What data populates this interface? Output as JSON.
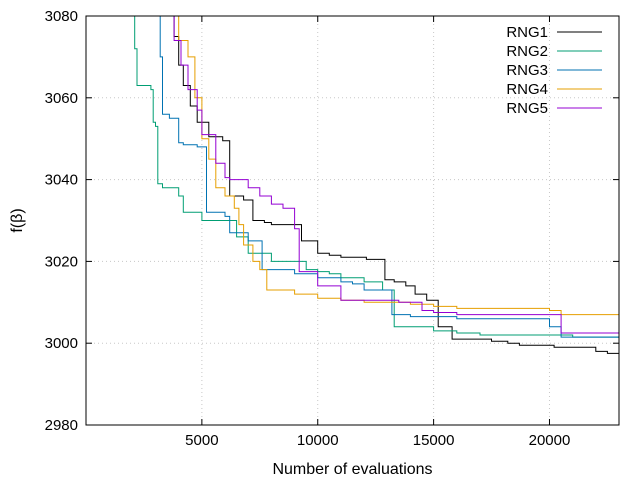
{
  "chart_data": {
    "type": "line",
    "xlabel": "Number of evaluations",
    "ylabel": "f(β)",
    "xlim": [
      0,
      23000
    ],
    "ylim": [
      2980,
      3080
    ],
    "xticks": [
      5000,
      10000,
      15000,
      20000
    ],
    "yticks": [
      2980,
      3000,
      3020,
      3040,
      3060,
      3080
    ],
    "xtick_labels": [
      "5000",
      "10000",
      "15000",
      "20000"
    ],
    "ytick_labels": [
      "2980",
      "3000",
      "3020",
      "3040",
      "3060",
      "3080"
    ],
    "grid": true,
    "legend_position": "top-right",
    "step_lines": true,
    "series": [
      {
        "name": "RNG1",
        "color": "#000000",
        "x": [
          3600,
          3800,
          4000,
          4200,
          4500,
          4800,
          5300,
          5900,
          6200,
          6800,
          7200,
          7700,
          8000,
          8300,
          9300,
          10000,
          10500,
          11000,
          11500,
          12100,
          12500,
          12900,
          13300,
          13800,
          14200,
          14700,
          15200,
          15800,
          17500,
          18200,
          18700,
          19000,
          20200,
          20500,
          21500,
          22000,
          22500,
          23000
        ],
        "y": [
          3080,
          3075,
          3068,
          3063,
          3058,
          3054,
          3050.5,
          3049.5,
          3036,
          3035,
          3030,
          3029.5,
          3029,
          3029,
          3025,
          3022,
          3021.5,
          3021,
          3021,
          3020.5,
          3020.5,
          3015.5,
          3015,
          3014,
          3012,
          3010.5,
          3004,
          3001,
          3000.5,
          3000,
          2999.5,
          2999.5,
          2999,
          2999,
          2999,
          2998,
          2997.5,
          2997.5
        ]
      },
      {
        "name": "RNG2",
        "color": "#009e73",
        "x": [
          2000,
          2100,
          2200,
          2800,
          2900,
          3000,
          3100,
          3300,
          4000,
          4200,
          5000,
          6000,
          6500,
          7000,
          8000,
          9500,
          10000,
          10500,
          11000,
          12000,
          12800,
          13300,
          15000,
          16000,
          17000,
          20000,
          21000,
          23000
        ],
        "y": [
          3080,
          3072,
          3063,
          3062,
          3054,
          3053,
          3039,
          3038,
          3036,
          3032,
          3030,
          3030,
          3026,
          3022,
          3020,
          3018,
          3017.5,
          3017,
          3016,
          3015,
          3013,
          3004,
          3003,
          3002.5,
          3002,
          3002,
          3001.5,
          3001.5
        ]
      },
      {
        "name": "RNG3",
        "color": "#0072b2",
        "x": [
          3100,
          3200,
          3300,
          3600,
          4000,
          4200,
          4800,
          5200,
          6000,
          6200,
          7000,
          7600,
          9000,
          10000,
          11000,
          11500,
          12000,
          13200,
          14000,
          15000,
          16000,
          18000,
          20000,
          20500,
          23000
        ],
        "y": [
          3080,
          3070,
          3056,
          3055,
          3049,
          3048.5,
          3048,
          3032,
          3031,
          3027,
          3025,
          3018,
          3017,
          3016,
          3015,
          3014.5,
          3013,
          3007,
          3006.5,
          3006.5,
          3006,
          3006,
          3004,
          3001.5,
          3000
        ]
      },
      {
        "name": "RNG4",
        "color": "#e69f00",
        "x": [
          3900,
          4000,
          4400,
          4700,
          5000,
          5300,
          5600,
          6000,
          6400,
          6600,
          6800,
          7200,
          7500,
          7800,
          9000,
          10000,
          11000,
          12000,
          14000,
          15000,
          16000,
          18000,
          20000,
          20500,
          23000
        ],
        "y": [
          3080,
          3074,
          3070,
          3060,
          3050,
          3045,
          3038,
          3036,
          3033,
          3029,
          3024,
          3020,
          3018,
          3013,
          3012,
          3011,
          3010.5,
          3010,
          3009.5,
          3009,
          3008.5,
          3008.5,
          3008,
          3007,
          3007
        ]
      },
      {
        "name": "RNG5",
        "color": "#9400d3",
        "x": [
          3600,
          3800,
          4100,
          4400,
          4800,
          5000,
          5600,
          6000,
          6200,
          7000,
          7500,
          8000,
          8500,
          9000,
          9200,
          10000,
          11000,
          13500,
          14500,
          15000,
          16000,
          18000,
          20000,
          20500,
          23000
        ],
        "y": [
          3080,
          3074,
          3068,
          3062,
          3057,
          3051,
          3044,
          3040.5,
          3040,
          3038,
          3036,
          3034,
          3033,
          3028,
          3017.5,
          3014,
          3010.5,
          3010,
          3008,
          3007.5,
          3007,
          3007,
          3007,
          3002.5,
          3002.5
        ]
      }
    ]
  }
}
